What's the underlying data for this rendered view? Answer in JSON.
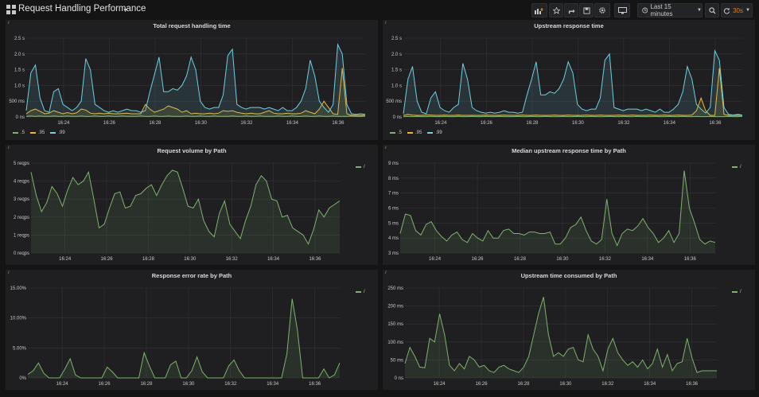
{
  "header": {
    "title": "Request Handling Performance",
    "time_range_label": "Last 15 minutes",
    "refresh_label": "30s"
  },
  "colors": {
    "p50": "#7eb26d",
    "p95": "#eab839",
    "p99": "#6ed0e0",
    "path": "#7eb26d",
    "refresh": "#eb7b18"
  },
  "panels": [
    {
      "title": "Total request handling time",
      "legend": [
        ".5",
        ".95",
        ".99"
      ],
      "chart_data": {
        "type": "line",
        "title": "Total request handling time",
        "x_ticks": [
          "16:24",
          "16:26",
          "16:28",
          "16:30",
          "16:32",
          "16:34",
          "16:36"
        ],
        "y_ticks": [
          "0 ns",
          "500 ms",
          "1.0 s",
          "1.5 s",
          "2.0 s",
          "2.5 s"
        ],
        "ylim": [
          0,
          2.5
        ],
        "series": [
          {
            "name": ".5",
            "values": [
              0.02,
              0.03,
              0.02,
              0.03,
              0.02,
              0.02,
              0.03,
              0.02,
              0.02,
              0.03,
              0.02,
              0.02,
              0.03,
              0.02,
              0.02,
              0.03,
              0.02,
              0.02,
              0.03,
              0.02,
              0.02,
              0.03,
              0.02,
              0.02,
              0.02,
              0.03,
              0.02,
              0.02,
              0.03,
              0.02,
              0.02,
              0.03,
              0.02,
              0.02,
              0.02,
              0.03,
              0.02,
              0.02,
              0.03,
              0.02,
              0.02,
              0.03,
              0.02,
              0.02,
              0.02,
              0.03,
              0.02,
              0.02,
              0.03,
              0.02,
              0.02,
              0.03,
              0.02,
              0.02,
              0.02,
              0.03,
              0.02,
              0.02,
              0.03,
              0.02,
              0.02,
              0.03,
              0.02,
              0.02,
              0.03,
              0.02,
              0.02,
              0.03,
              0.02,
              0.02,
              0.02,
              0.03,
              0.02,
              0.02,
              0.03
            ]
          },
          {
            "name": ".95",
            "values": [
              0.1,
              0.2,
              0.25,
              0.18,
              0.1,
              0.12,
              0.2,
              0.15,
              0.1,
              0.14,
              0.1,
              0.13,
              0.25,
              0.22,
              0.12,
              0.1,
              0.12,
              0.1,
              0.12,
              0.1,
              0.1,
              0.11,
              0.12,
              0.1,
              0.1,
              0.1,
              0.4,
              0.25,
              0.15,
              0.2,
              0.25,
              0.35,
              0.3,
              0.25,
              0.15,
              0.2,
              0.1,
              0.12,
              0.1,
              0.1,
              0.12,
              0.1,
              0.12,
              0.2,
              0.18,
              0.2,
              0.15,
              0.12,
              0.1,
              0.12,
              0.1,
              0.1,
              0.15,
              0.2,
              0.12,
              0.1,
              0.1,
              0.12,
              0.1,
              0.1,
              0.12,
              0.2,
              0.15,
              0.1,
              0.25,
              0.5,
              0.3,
              0.1,
              0.08,
              1.55,
              0.1,
              0.05,
              0.05,
              0.05,
              0.05
            ]
          },
          {
            "name": ".99",
            "values": [
              0.2,
              1.4,
              1.65,
              0.6,
              0.2,
              0.15,
              0.8,
              0.9,
              0.4,
              0.3,
              0.2,
              0.3,
              0.5,
              1.85,
              1.5,
              0.4,
              0.3,
              0.2,
              0.15,
              0.2,
              0.15,
              0.2,
              0.25,
              0.2,
              0.2,
              0.15,
              0.2,
              0.8,
              1.35,
              1.9,
              0.8,
              0.8,
              0.9,
              0.85,
              1.0,
              1.3,
              1.9,
              1.5,
              0.5,
              0.3,
              0.25,
              0.3,
              0.3,
              0.7,
              1.95,
              2.15,
              0.4,
              0.3,
              0.25,
              0.3,
              0.3,
              0.3,
              0.25,
              0.3,
              0.25,
              0.2,
              0.3,
              0.2,
              0.2,
              0.3,
              0.5,
              0.9,
              1.8,
              1.3,
              0.5,
              0.3,
              0.15,
              0.4,
              2.3,
              2.0,
              0.4,
              0.1,
              0.08,
              0.1,
              0.08
            ]
          }
        ]
      }
    },
    {
      "title": "Upstream response time",
      "legend": [
        ".5",
        ".95",
        ".99"
      ],
      "chart_data": {
        "type": "line",
        "title": "Upstream response time",
        "x_ticks": [
          "16:24",
          "16:26",
          "16:28",
          "16:30",
          "16:32",
          "16:34",
          "16:36"
        ],
        "y_ticks": [
          "0 ns",
          "500 ms",
          "1.0 s",
          "1.5 s",
          "2.0 s",
          "2.5 s"
        ],
        "ylim": [
          0,
          2.5
        ],
        "series": [
          {
            "name": ".5",
            "values": [
              0.01,
              0.02,
              0.01,
              0.02,
              0.01,
              0.01,
              0.02,
              0.01,
              0.01,
              0.02,
              0.01,
              0.01,
              0.02,
              0.01,
              0.01,
              0.02,
              0.01,
              0.01,
              0.02,
              0.01,
              0.01,
              0.02,
              0.01,
              0.01,
              0.01,
              0.02,
              0.01,
              0.01,
              0.02,
              0.01,
              0.01,
              0.02,
              0.01,
              0.01,
              0.01,
              0.02,
              0.01,
              0.01,
              0.02,
              0.01,
              0.01,
              0.02,
              0.01,
              0.01,
              0.01,
              0.02,
              0.01,
              0.01,
              0.02,
              0.01,
              0.01,
              0.02,
              0.01,
              0.01,
              0.01,
              0.02,
              0.01,
              0.01,
              0.02,
              0.01,
              0.01,
              0.02,
              0.01,
              0.01,
              0.02,
              0.01,
              0.01,
              0.02,
              0.01,
              0.01,
              0.01,
              0.02,
              0.01,
              0.01,
              0.02
            ]
          },
          {
            "name": ".95",
            "values": [
              0.05,
              0.08,
              0.06,
              0.05,
              0.05,
              0.06,
              0.06,
              0.05,
              0.05,
              0.06,
              0.05,
              0.05,
              0.06,
              0.05,
              0.05,
              0.05,
              0.05,
              0.05,
              0.06,
              0.05,
              0.05,
              0.05,
              0.06,
              0.05,
              0.05,
              0.05,
              0.06,
              0.05,
              0.05,
              0.06,
              0.05,
              0.05,
              0.05,
              0.06,
              0.05,
              0.05,
              0.06,
              0.05,
              0.05,
              0.05,
              0.06,
              0.05,
              0.05,
              0.06,
              0.05,
              0.05,
              0.05,
              0.06,
              0.05,
              0.05,
              0.06,
              0.05,
              0.05,
              0.05,
              0.06,
              0.05,
              0.05,
              0.06,
              0.05,
              0.05,
              0.06,
              0.05,
              0.05,
              0.06,
              0.2,
              0.6,
              0.2,
              0.05,
              0.05,
              1.55,
              0.08,
              0.05,
              0.05,
              0.05,
              0.05
            ]
          },
          {
            "name": ".99",
            "values": [
              0.1,
              1.2,
              1.6,
              0.5,
              0.15,
              0.1,
              0.6,
              0.8,
              0.3,
              0.2,
              0.15,
              0.3,
              0.4,
              1.7,
              1.2,
              0.3,
              0.2,
              0.15,
              0.12,
              0.15,
              0.12,
              0.15,
              0.2,
              0.15,
              0.15,
              0.12,
              0.15,
              0.7,
              1.2,
              1.75,
              0.7,
              0.7,
              0.8,
              0.75,
              0.9,
              1.2,
              1.75,
              1.4,
              0.4,
              0.25,
              0.2,
              0.25,
              0.25,
              0.6,
              1.8,
              2.0,
              0.3,
              0.25,
              0.2,
              0.25,
              0.25,
              0.25,
              0.2,
              0.25,
              0.2,
              0.15,
              0.25,
              0.15,
              0.15,
              0.25,
              0.4,
              0.8,
              1.6,
              1.2,
              0.4,
              0.25,
              0.12,
              0.3,
              2.1,
              1.8,
              0.3,
              0.08,
              0.06,
              0.08,
              0.06
            ]
          }
        ]
      }
    },
    {
      "title": "Request volume by Path",
      "legend": [
        "/"
      ],
      "chart_data": {
        "type": "area",
        "title": "Request volume by Path",
        "x_ticks": [
          "16:24",
          "16:26",
          "16:28",
          "16:30",
          "16:32",
          "16:34",
          "16:36"
        ],
        "y_ticks": [
          "0 reqps",
          "1 reqps",
          "2 reqps",
          "3 reqps",
          "4 reqps",
          "5 reqps"
        ],
        "ylim": [
          0,
          5
        ],
        "series": [
          {
            "name": "/",
            "values": [
              4.5,
              3.2,
              2.3,
              2.8,
              3.7,
              3.3,
              2.6,
              3.5,
              4.2,
              3.8,
              4.0,
              4.5,
              3.0,
              1.4,
              1.6,
              2.5,
              3.3,
              3.4,
              2.5,
              2.6,
              3.2,
              3.3,
              3.6,
              3.8,
              3.2,
              3.8,
              4.3,
              4.6,
              4.5,
              3.6,
              2.6,
              2.5,
              3.0,
              1.8,
              1.2,
              0.9,
              2.2,
              2.9,
              1.6,
              1.2,
              0.8,
              1.8,
              2.6,
              3.8,
              4.3,
              4.0,
              3.0,
              2.9,
              2.0,
              2.1,
              1.4,
              1.2,
              1.0,
              0.5,
              1.3,
              2.4,
              2.0,
              2.5,
              2.7,
              2.9
            ]
          }
        ]
      }
    },
    {
      "title": "Median upstream response time by Path",
      "legend": [
        "/"
      ],
      "chart_data": {
        "type": "area",
        "title": "Median upstream response time by Path",
        "x_ticks": [
          "16:24",
          "16:26",
          "16:28",
          "16:30",
          "16:32",
          "16:34",
          "16:36"
        ],
        "y_ticks": [
          "3 ms",
          "4 ms",
          "5 ms",
          "6 ms",
          "7 ms",
          "8 ms",
          "9 ms"
        ],
        "ylim": [
          3,
          9
        ],
        "series": [
          {
            "name": "/",
            "values": [
              4.3,
              5.6,
              5.5,
              4.5,
              4.2,
              4.9,
              5.1,
              4.5,
              4.1,
              3.8,
              4.2,
              4.4,
              3.9,
              3.7,
              4.3,
              4.0,
              3.8,
              4.5,
              4.0,
              4.0,
              4.5,
              4.6,
              4.3,
              4.3,
              4.2,
              4.4,
              4.4,
              4.3,
              4.3,
              4.4,
              3.6,
              3.6,
              4.0,
              4.7,
              4.9,
              5.4,
              4.5,
              3.8,
              3.6,
              3.9,
              6.6,
              4.3,
              3.5,
              4.3,
              4.6,
              4.5,
              4.8,
              5.3,
              4.7,
              4.3,
              3.7,
              4.0,
              4.5,
              3.7,
              4.3,
              8.5,
              6.0,
              5.0,
              3.9,
              3.6,
              3.8,
              3.7
            ]
          }
        ]
      }
    },
    {
      "title": "Response error rate by Path",
      "legend": [
        "/"
      ],
      "chart_data": {
        "type": "area",
        "title": "Response error rate by Path",
        "x_ticks": [
          "16:24",
          "16:26",
          "16:28",
          "16:30",
          "16:32",
          "16:34",
          "16:36"
        ],
        "y_ticks": [
          "0%",
          "5.00%",
          "10.00%",
          "15.00%"
        ],
        "ylim": [
          0,
          15
        ],
        "series": [
          {
            "name": "/",
            "values": [
              0.6,
              1.2,
              2.5,
              0.8,
              0,
              0,
              0,
              1.5,
              3.2,
              0.5,
              0,
              0,
              0,
              0,
              0,
              1.8,
              1.0,
              0,
              0,
              0,
              0,
              0,
              4.2,
              2.0,
              0,
              0,
              0,
              2.2,
              2.8,
              0,
              0,
              1.2,
              3.5,
              1.0,
              0,
              0,
              0,
              0,
              2.0,
              3.0,
              1.2,
              0,
              0,
              0,
              0,
              0,
              0,
              0,
              0,
              4.0,
              13.2,
              8.0,
              0,
              0,
              0,
              0,
              1.5,
              0,
              0.5,
              2.5
            ]
          }
        ]
      }
    },
    {
      "title": "Upstream time consumed by Path",
      "legend": [
        "/"
      ],
      "chart_data": {
        "type": "area",
        "title": "Upstream time consumed by Path",
        "x_ticks": [
          "16:24",
          "16:26",
          "16:28",
          "16:30",
          "16:32",
          "16:34",
          "16:36"
        ],
        "y_ticks": [
          "0 ns",
          "50 ms",
          "100 ms",
          "150 ms",
          "200 ms",
          "250 ms"
        ],
        "ylim": [
          0,
          250
        ],
        "series": [
          {
            "name": "/",
            "values": [
              40,
              85,
              60,
              30,
              28,
              110,
              100,
              178,
              120,
              35,
              20,
              40,
              25,
              60,
              50,
              30,
              35,
              20,
              15,
              30,
              35,
              25,
              20,
              15,
              30,
              60,
              120,
              180,
              225,
              120,
              60,
              70,
              60,
              80,
              85,
              50,
              45,
              120,
              80,
              60,
              20,
              80,
              110,
              70,
              50,
              35,
              45,
              30,
              50,
              25,
              40,
              80,
              30,
              65,
              20,
              40,
              45,
              110,
              55,
              15,
              20,
              20,
              20,
              20
            ]
          }
        ]
      }
    }
  ]
}
